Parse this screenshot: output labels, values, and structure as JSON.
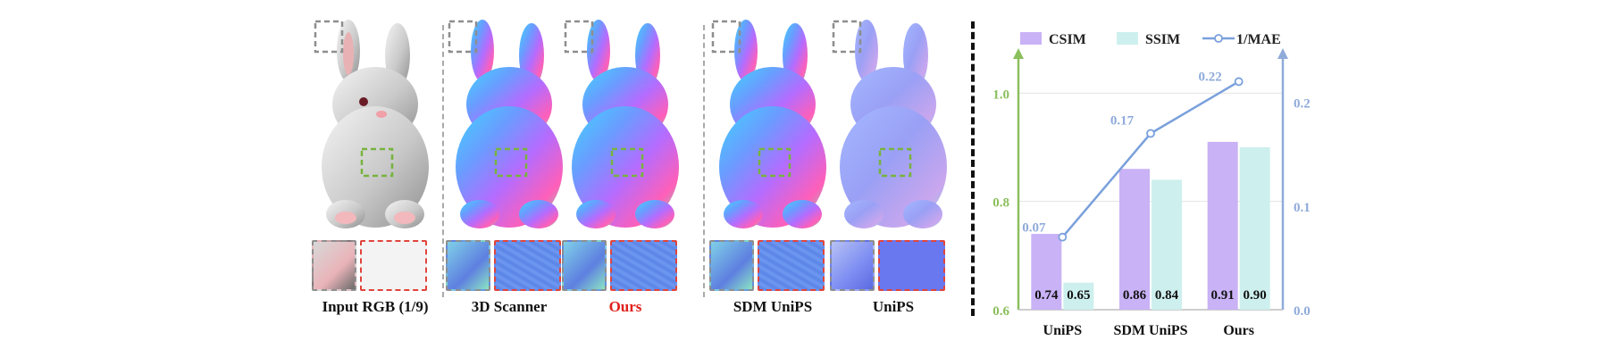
{
  "figure": {
    "panels": [
      {
        "caption": "Input RGB (1/9)",
        "kind": "rgb",
        "highlight": false
      },
      {
        "caption": "3D Scanner",
        "kind": "normal",
        "highlight": false
      },
      {
        "caption": "Ours",
        "kind": "normal",
        "highlight": true
      },
      {
        "caption": "SDM UniPS",
        "kind": "normal",
        "highlight": false
      },
      {
        "caption": "UniPS",
        "kind": "flat",
        "highlight": false
      }
    ],
    "colors": {
      "csim": "#c9b2f6",
      "ssim": "#cdf0ee",
      "mae": "#7aa0dc",
      "left_axis": "#8bbf5c",
      "right_axis": "#8fabda",
      "highlight_caption": "#e0201c"
    }
  },
  "chart_data": {
    "type": "bar",
    "categories": [
      "UniPS",
      "SDM UniPS",
      "Ours"
    ],
    "series": [
      {
        "name": "CSIM",
        "values": [
          0.74,
          0.86,
          0.91
        ],
        "axis": "left",
        "data_labels": [
          "0.74",
          "0.86",
          "0.91"
        ]
      },
      {
        "name": "SSIM",
        "values": [
          0.65,
          0.84,
          0.9
        ],
        "axis": "left",
        "data_labels": [
          "0.65",
          "0.84",
          "0.90"
        ]
      },
      {
        "name": "1/MAE",
        "type": "line",
        "values": [
          0.07,
          0.17,
          0.22
        ],
        "axis": "right",
        "data_labels": [
          "0.07",
          "0.17",
          "0.22"
        ]
      }
    ],
    "left_axis": {
      "ylim": [
        0.6,
        1.05
      ],
      "ticks": [
        "0.6",
        "0.8",
        "1.0"
      ]
    },
    "right_axis": {
      "ylim": [
        0.0,
        0.235
      ],
      "ticks": [
        "0.0",
        "0.1",
        "0.2"
      ]
    },
    "legend_position": "top",
    "grid": true
  }
}
